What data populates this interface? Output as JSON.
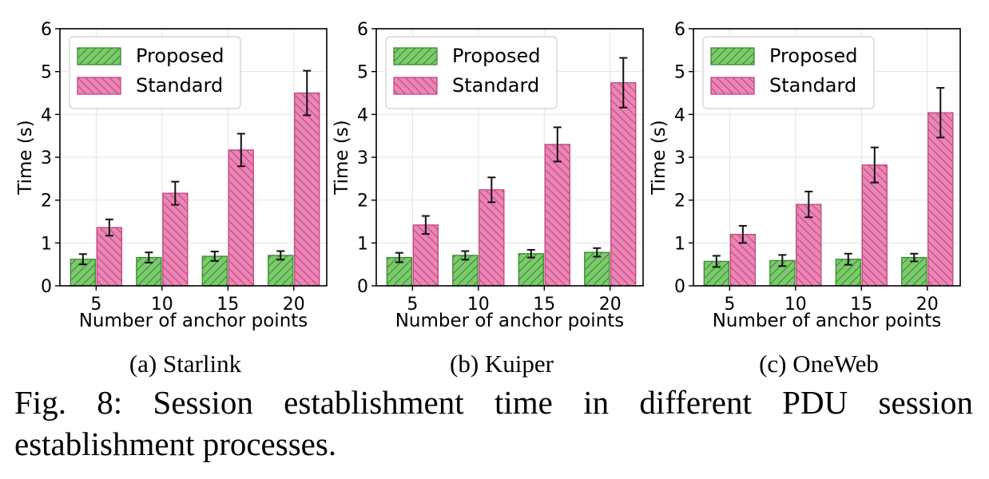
{
  "colors": {
    "proposed": "#7cc96e",
    "proposed_edge": "#3a8a2e",
    "standard": "#ea86b5",
    "standard_edge": "#c0467f"
  },
  "chart_data": [
    {
      "type": "bar",
      "subtitle": "(a) Starlink",
      "categories": [
        "5",
        "10",
        "15",
        "20"
      ],
      "series": [
        {
          "name": "Proposed",
          "values": [
            0.62,
            0.66,
            0.69,
            0.71
          ],
          "errors": [
            0.12,
            0.12,
            0.11,
            0.1
          ]
        },
        {
          "name": "Standard",
          "values": [
            1.36,
            2.16,
            3.17,
            4.5
          ],
          "errors": [
            0.19,
            0.27,
            0.38,
            0.52
          ]
        }
      ],
      "xlabel": "Number of anchor points",
      "ylabel": "Time (s)",
      "ylim": [
        0,
        6
      ],
      "yticks": [
        "0",
        "1",
        "2",
        "3",
        "4",
        "5",
        "6"
      ],
      "legend": "top-left",
      "grid": true
    },
    {
      "type": "bar",
      "subtitle": "(b) Kuiper",
      "categories": [
        "5",
        "10",
        "15",
        "20"
      ],
      "series": [
        {
          "name": "Proposed",
          "values": [
            0.66,
            0.71,
            0.75,
            0.78
          ],
          "errors": [
            0.11,
            0.1,
            0.09,
            0.1
          ]
        },
        {
          "name": "Standard",
          "values": [
            1.42,
            2.24,
            3.3,
            4.74
          ],
          "errors": [
            0.21,
            0.29,
            0.4,
            0.58
          ]
        }
      ],
      "xlabel": "Number of anchor points",
      "ylabel": "Time (s)",
      "ylim": [
        0,
        6
      ],
      "yticks": [
        "0",
        "1",
        "2",
        "3",
        "4",
        "5",
        "6"
      ],
      "legend": "top-left",
      "grid": true
    },
    {
      "type": "bar",
      "subtitle": "(c) OneWeb",
      "categories": [
        "5",
        "10",
        "15",
        "20"
      ],
      "series": [
        {
          "name": "Proposed",
          "values": [
            0.57,
            0.59,
            0.62,
            0.66
          ],
          "errors": [
            0.13,
            0.13,
            0.13,
            0.09
          ]
        },
        {
          "name": "Standard",
          "values": [
            1.2,
            1.9,
            2.82,
            4.04
          ],
          "errors": [
            0.2,
            0.3,
            0.41,
            0.58
          ]
        }
      ],
      "xlabel": "Number of anchor points",
      "ylabel": "Time (s)",
      "ylim": [
        0,
        6
      ],
      "yticks": [
        "0",
        "1",
        "2",
        "3",
        "4",
        "5",
        "6"
      ],
      "legend": "top-left",
      "grid": true
    }
  ],
  "caption": "Fig. 8: Session establishment time in different PDU session establishment processes."
}
